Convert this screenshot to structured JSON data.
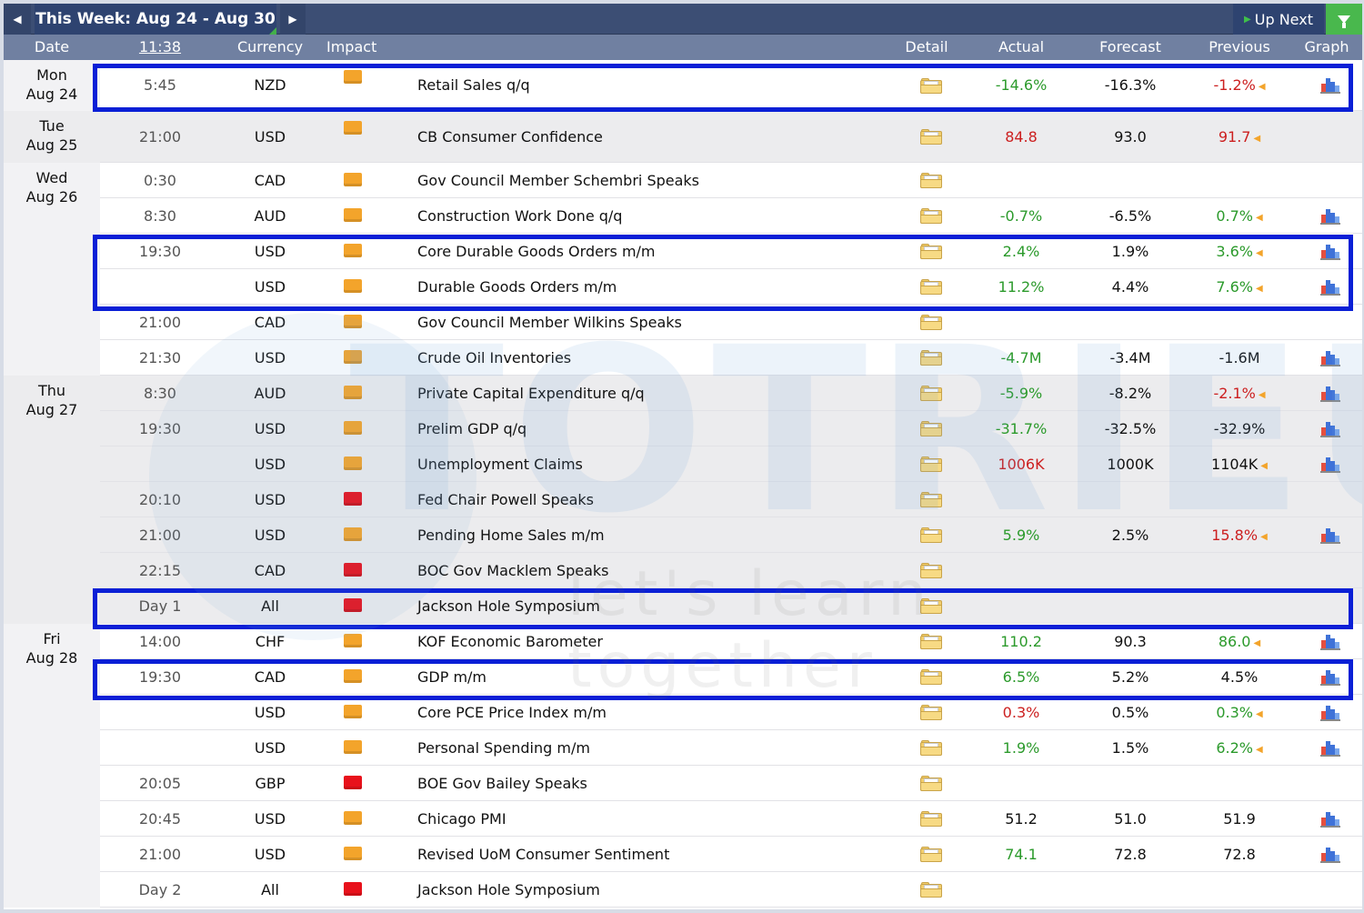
{
  "topbar": {
    "week_title": "This Week: Aug 24 - Aug 30",
    "up_next_label": "Up Next"
  },
  "header": {
    "date": "Date",
    "time": "11:38",
    "currency": "Currency",
    "impact": "Impact",
    "detail": "Detail",
    "actual": "Actual",
    "forecast": "Forecast",
    "previous": "Previous",
    "graph": "Graph"
  },
  "watermark": {
    "brand": "TOTRIEU",
    "slogan": "let's learn together"
  },
  "colors": {
    "impact_medium": "#f3a42b",
    "impact_high": "#e8111b",
    "positive": "#2b9a2b",
    "negative": "#cc1f1f",
    "highlight": "#0a1fd6"
  },
  "days": [
    {
      "weekday": "Mon",
      "date": "Aug 24",
      "events": [
        {
          "time": "5:45",
          "currency": "NZD",
          "impact": "medium",
          "event": "Retail Sales q/q",
          "actual": "-14.6%",
          "actual_color": "green",
          "forecast": "-16.3%",
          "previous": "-1.2%",
          "previous_color": "red",
          "previous_revised": true,
          "graph": true,
          "highlight": true
        }
      ]
    },
    {
      "weekday": "Tue",
      "date": "Aug 25",
      "events": [
        {
          "time": "21:00",
          "currency": "USD",
          "impact": "medium",
          "event": "CB Consumer Confidence",
          "actual": "84.8",
          "actual_color": "red",
          "forecast": "93.0",
          "previous": "91.7",
          "previous_color": "red",
          "previous_revised": true,
          "graph": false
        }
      ]
    },
    {
      "weekday": "Wed",
      "date": "Aug 26",
      "events": [
        {
          "time": "0:30",
          "currency": "CAD",
          "impact": "medium",
          "event": "Gov Council Member Schembri Speaks",
          "actual": "",
          "forecast": "",
          "previous": "",
          "graph": false
        },
        {
          "time": "8:30",
          "currency": "AUD",
          "impact": "medium",
          "event": "Construction Work Done q/q",
          "actual": "-0.7%",
          "actual_color": "green",
          "forecast": "-6.5%",
          "previous": "0.7%",
          "previous_color": "green",
          "previous_revised": true,
          "graph": true
        },
        {
          "time": "19:30",
          "currency": "USD",
          "impact": "medium",
          "event": "Core Durable Goods Orders m/m",
          "actual": "2.4%",
          "actual_color": "green",
          "forecast": "1.9%",
          "previous": "3.6%",
          "previous_color": "green",
          "previous_revised": true,
          "graph": true
        },
        {
          "time": "",
          "currency": "USD",
          "impact": "medium",
          "event": "Durable Goods Orders m/m",
          "actual": "11.2%",
          "actual_color": "green",
          "forecast": "4.4%",
          "previous": "7.6%",
          "previous_color": "green",
          "previous_revised": true,
          "graph": true
        },
        {
          "time": "21:00",
          "currency": "CAD",
          "impact": "medium",
          "event": "Gov Council Member Wilkins Speaks",
          "actual": "",
          "forecast": "",
          "previous": "",
          "graph": false
        },
        {
          "time": "21:30",
          "currency": "USD",
          "impact": "medium",
          "event": "Crude Oil Inventories",
          "actual": "-4.7M",
          "actual_color": "green",
          "forecast": "-3.4M",
          "previous": "-1.6M",
          "previous_color": "black",
          "graph": true
        }
      ]
    },
    {
      "weekday": "Thu",
      "date": "Aug 27",
      "events": [
        {
          "time": "8:30",
          "currency": "AUD",
          "impact": "medium",
          "event": "Private Capital Expenditure q/q",
          "actual": "-5.9%",
          "actual_color": "green",
          "forecast": "-8.2%",
          "previous": "-2.1%",
          "previous_color": "red",
          "previous_revised": true,
          "graph": true
        },
        {
          "time": "19:30",
          "currency": "USD",
          "impact": "medium",
          "event": "Prelim GDP q/q",
          "actual": "-31.7%",
          "actual_color": "green",
          "forecast": "-32.5%",
          "previous": "-32.9%",
          "previous_color": "black",
          "graph": true
        },
        {
          "time": "",
          "currency": "USD",
          "impact": "medium",
          "event": "Unemployment Claims",
          "actual": "1006K",
          "actual_color": "red",
          "forecast": "1000K",
          "previous": "1104K",
          "previous_color": "black",
          "previous_revised": true,
          "graph": true
        },
        {
          "time": "20:10",
          "currency": "USD",
          "impact": "high",
          "event": "Fed Chair Powell Speaks",
          "actual": "",
          "forecast": "",
          "previous": "",
          "graph": false
        },
        {
          "time": "21:00",
          "currency": "USD",
          "impact": "medium",
          "event": "Pending Home Sales m/m",
          "actual": "5.9%",
          "actual_color": "green",
          "forecast": "2.5%",
          "previous": "15.8%",
          "previous_color": "red",
          "previous_revised": true,
          "graph": true
        },
        {
          "time": "22:15",
          "currency": "CAD",
          "impact": "high",
          "event": "BOC Gov Macklem Speaks",
          "actual": "",
          "forecast": "",
          "previous": "",
          "graph": false
        },
        {
          "time": "Day 1",
          "currency": "All",
          "impact": "high",
          "event": "Jackson Hole Symposium",
          "actual": "",
          "forecast": "",
          "previous": "",
          "graph": false,
          "highlight": true
        }
      ]
    },
    {
      "weekday": "Fri",
      "date": "Aug 28",
      "events": [
        {
          "time": "14:00",
          "currency": "CHF",
          "impact": "medium",
          "event": "KOF Economic Barometer",
          "actual": "110.2",
          "actual_color": "green",
          "forecast": "90.3",
          "previous": "86.0",
          "previous_color": "green",
          "previous_revised": true,
          "graph": true
        },
        {
          "time": "19:30",
          "currency": "CAD",
          "impact": "medium",
          "event": "GDP m/m",
          "actual": "6.5%",
          "actual_color": "green",
          "forecast": "5.2%",
          "previous": "4.5%",
          "previous_color": "black",
          "graph": true,
          "highlight": true
        },
        {
          "time": "",
          "currency": "USD",
          "impact": "medium",
          "event": "Core PCE Price Index m/m",
          "actual": "0.3%",
          "actual_color": "red",
          "forecast": "0.5%",
          "previous": "0.3%",
          "previous_color": "green",
          "previous_revised": true,
          "graph": true
        },
        {
          "time": "",
          "currency": "USD",
          "impact": "medium",
          "event": "Personal Spending m/m",
          "actual": "1.9%",
          "actual_color": "green",
          "forecast": "1.5%",
          "previous": "6.2%",
          "previous_color": "green",
          "previous_revised": true,
          "graph": true
        },
        {
          "time": "20:05",
          "currency": "GBP",
          "impact": "high",
          "event": "BOE Gov Bailey Speaks",
          "actual": "",
          "forecast": "",
          "previous": "",
          "graph": false
        },
        {
          "time": "20:45",
          "currency": "USD",
          "impact": "medium",
          "event": "Chicago PMI",
          "actual": "51.2",
          "actual_color": "black",
          "forecast": "51.0",
          "previous": "51.9",
          "previous_color": "black",
          "graph": true
        },
        {
          "time": "21:00",
          "currency": "USD",
          "impact": "medium",
          "event": "Revised UoM Consumer Sentiment",
          "actual": "74.1",
          "actual_color": "green",
          "forecast": "72.8",
          "previous": "72.8",
          "previous_color": "black",
          "graph": true
        },
        {
          "time": "Day 2",
          "currency": "All",
          "impact": "high",
          "event": "Jackson Hole Symposium",
          "actual": "",
          "forecast": "",
          "previous": "",
          "graph": false
        }
      ]
    }
  ]
}
